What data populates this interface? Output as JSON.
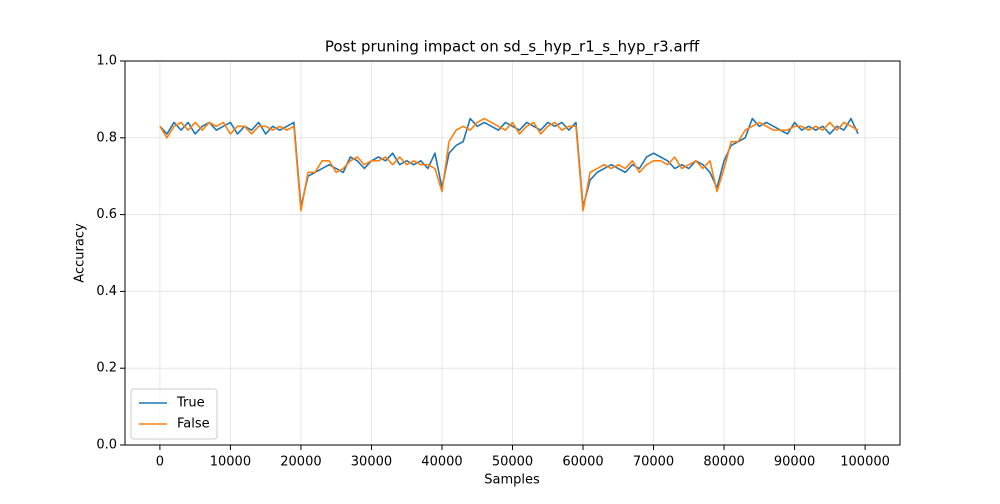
{
  "chart_data": {
    "type": "line",
    "title": "Post pruning impact on sd_s_hyp_r1_s_hyp_r3.arff",
    "xlabel": "Samples",
    "ylabel": "Accuracy",
    "x": [
      0,
      1000,
      2000,
      3000,
      4000,
      5000,
      6000,
      7000,
      8000,
      9000,
      10000,
      11000,
      12000,
      13000,
      14000,
      15000,
      16000,
      17000,
      18000,
      19000,
      20000,
      21000,
      22000,
      23000,
      24000,
      25000,
      26000,
      27000,
      28000,
      29000,
      30000,
      31000,
      32000,
      33000,
      34000,
      35000,
      36000,
      37000,
      38000,
      39000,
      40000,
      41000,
      42000,
      43000,
      44000,
      45000,
      46000,
      47000,
      48000,
      49000,
      50000,
      51000,
      52000,
      53000,
      54000,
      55000,
      56000,
      57000,
      58000,
      59000,
      60000,
      61000,
      62000,
      63000,
      64000,
      65000,
      66000,
      67000,
      68000,
      69000,
      70000,
      71000,
      72000,
      73000,
      74000,
      75000,
      76000,
      77000,
      78000,
      79000,
      80000,
      81000,
      82000,
      83000,
      84000,
      85000,
      86000,
      87000,
      88000,
      89000,
      90000,
      91000,
      92000,
      93000,
      94000,
      95000,
      96000,
      97000,
      98000,
      99000
    ],
    "series": [
      {
        "name": "True",
        "color": "#1f77b4",
        "values": [
          0.83,
          0.81,
          0.84,
          0.82,
          0.84,
          0.81,
          0.83,
          0.84,
          0.82,
          0.83,
          0.84,
          0.81,
          0.83,
          0.82,
          0.84,
          0.81,
          0.83,
          0.82,
          0.83,
          0.84,
          0.62,
          0.7,
          0.71,
          0.72,
          0.73,
          0.72,
          0.71,
          0.75,
          0.74,
          0.72,
          0.74,
          0.75,
          0.74,
          0.76,
          0.73,
          0.74,
          0.73,
          0.74,
          0.72,
          0.76,
          0.67,
          0.76,
          0.78,
          0.79,
          0.85,
          0.83,
          0.84,
          0.83,
          0.82,
          0.84,
          0.83,
          0.82,
          0.84,
          0.83,
          0.82,
          0.84,
          0.83,
          0.84,
          0.82,
          0.84,
          0.62,
          0.69,
          0.71,
          0.72,
          0.73,
          0.72,
          0.71,
          0.73,
          0.72,
          0.75,
          0.76,
          0.75,
          0.74,
          0.72,
          0.73,
          0.72,
          0.74,
          0.73,
          0.71,
          0.67,
          0.74,
          0.78,
          0.79,
          0.8,
          0.85,
          0.83,
          0.84,
          0.83,
          0.82,
          0.81,
          0.84,
          0.82,
          0.83,
          0.82,
          0.83,
          0.81,
          0.83,
          0.82,
          0.85,
          0.81
        ]
      },
      {
        "name": "False",
        "color": "#ff7f0e",
        "values": [
          0.83,
          0.8,
          0.83,
          0.84,
          0.82,
          0.84,
          0.82,
          0.84,
          0.83,
          0.84,
          0.81,
          0.83,
          0.83,
          0.81,
          0.83,
          0.83,
          0.82,
          0.83,
          0.82,
          0.83,
          0.61,
          0.71,
          0.71,
          0.74,
          0.74,
          0.71,
          0.72,
          0.74,
          0.75,
          0.73,
          0.74,
          0.74,
          0.75,
          0.73,
          0.75,
          0.73,
          0.74,
          0.73,
          0.73,
          0.72,
          0.66,
          0.79,
          0.82,
          0.83,
          0.82,
          0.84,
          0.85,
          0.84,
          0.83,
          0.82,
          0.84,
          0.81,
          0.83,
          0.84,
          0.81,
          0.83,
          0.84,
          0.82,
          0.83,
          0.83,
          0.61,
          0.71,
          0.72,
          0.73,
          0.72,
          0.73,
          0.72,
          0.74,
          0.71,
          0.73,
          0.74,
          0.74,
          0.73,
          0.75,
          0.72,
          0.73,
          0.74,
          0.72,
          0.74,
          0.66,
          0.72,
          0.79,
          0.79,
          0.82,
          0.83,
          0.84,
          0.83,
          0.82,
          0.82,
          0.82,
          0.83,
          0.83,
          0.82,
          0.83,
          0.82,
          0.84,
          0.82,
          0.84,
          0.83,
          0.82
        ]
      }
    ],
    "xlim": [
      -4950,
      104950
    ],
    "ylim": [
      0,
      1
    ],
    "xticks": [
      0,
      10000,
      20000,
      30000,
      40000,
      50000,
      60000,
      70000,
      80000,
      90000,
      100000
    ],
    "yticks": [
      {
        "value": 0,
        "label": "0.0"
      },
      0.2,
      0.4,
      0.6,
      0.8,
      {
        "value": 1,
        "label": "1.0"
      }
    ],
    "grid": true,
    "legend": "lower left"
  }
}
